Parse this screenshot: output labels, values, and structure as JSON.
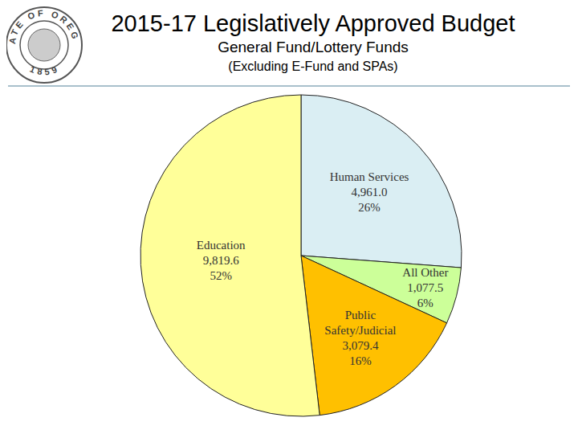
{
  "chart_data": {
    "type": "pie",
    "title": "2015-17 Legislatively Approved Budget",
    "subtitle": "General Fund/Lottery Funds",
    "annotations": [
      "(Excluding E-Fund and SPAs)",
      "STATE OF OREGON",
      "1859"
    ],
    "categories": [
      "Human Services",
      "All Other",
      "Public Safety/Judicial",
      "Education"
    ],
    "values": [
      4961.0,
      1077.5,
      3079.4,
      9819.6
    ],
    "value_labels": [
      "4,961.0",
      "1,077.5",
      "3,079.4",
      "9,819.6"
    ],
    "percents": [
      26,
      6,
      16,
      52
    ],
    "percent_labels": [
      "26%",
      "6%",
      "16%",
      "52%"
    ],
    "colors": [
      "#daeef3",
      "#ccff99",
      "#ffc000",
      "#ffff99"
    ],
    "data_labels": true
  }
}
